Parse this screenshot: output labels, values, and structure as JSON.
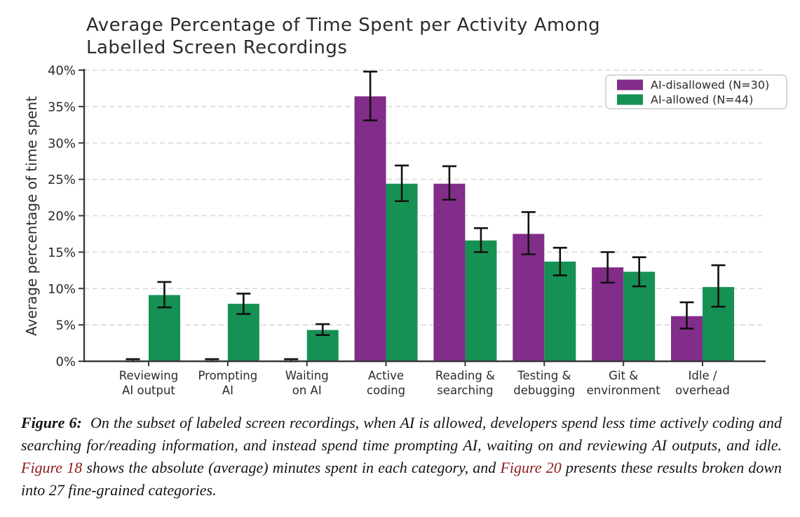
{
  "chart_data": {
    "type": "bar",
    "title": "Average Percentage of Time Spent per Activity Among Labelled Screen Recordings",
    "title_lines": [
      "Average Percentage of Time Spent per Activity Among",
      "Labelled Screen Recordings"
    ],
    "ylabel": "Average percentage of time spent",
    "xlabel": "",
    "ylim": [
      0,
      40
    ],
    "yticks": [
      0,
      5,
      10,
      15,
      20,
      25,
      30,
      35,
      40
    ],
    "ytick_suffix": "%",
    "grid": "horizontal-dashed",
    "legend_position": "top-right-inside",
    "categories": [
      "Reviewing AI output",
      "Prompting AI",
      "Waiting on AI",
      "Active coding",
      "Reading & searching",
      "Testing & debugging",
      "Git & environment",
      "Idle / overhead"
    ],
    "category_lines": [
      [
        "Reviewing",
        "AI output"
      ],
      [
        "Prompting",
        "AI"
      ],
      [
        "Waiting",
        "on AI"
      ],
      [
        "Active",
        "coding"
      ],
      [
        "Reading &",
        "searching"
      ],
      [
        "Testing &",
        "debugging"
      ],
      [
        "Git &",
        "environment"
      ],
      [
        "Idle /",
        "overhead"
      ]
    ],
    "series": [
      {
        "name": "AI-disallowed (N=30)",
        "color": "#822d8a",
        "values": [
          0.1,
          0.1,
          0.1,
          36.4,
          24.4,
          17.5,
          12.9,
          6.2
        ],
        "ci_low": [
          0.0,
          0.0,
          0.0,
          33.1,
          22.2,
          14.7,
          10.8,
          4.5
        ],
        "ci_high": [
          0.3,
          0.3,
          0.3,
          39.8,
          26.8,
          20.5,
          15.0,
          8.1
        ]
      },
      {
        "name": "AI-allowed (N=44)",
        "color": "#169154",
        "values": [
          9.1,
          7.9,
          4.3,
          24.4,
          16.6,
          13.7,
          12.3,
          10.2
        ],
        "ci_low": [
          7.4,
          6.5,
          3.6,
          22.0,
          15.0,
          11.8,
          10.3,
          7.5
        ],
        "ci_high": [
          10.9,
          9.3,
          5.1,
          26.9,
          18.3,
          15.6,
          14.3,
          13.2
        ]
      }
    ],
    "error_bar_color": "#111111",
    "gridline_color": "#d8d8d8",
    "spine_color": "#3a3a3a"
  },
  "caption": {
    "label": "Figure 6:",
    "part1": "On the subset of labeled screen recordings, when AI is allowed, developers spend less time actively coding and searching for/reading information, and instead spend time prompting AI, waiting on and reviewing AI outputs, and idle.",
    "link1": "Figure 18",
    "part2": "shows the absolute (average) minutes spent in each category, and",
    "link2": "Figure 20",
    "part3": "presents these results broken down into 27 fine-grained categories.",
    "link_color": "#8f1d1d"
  }
}
